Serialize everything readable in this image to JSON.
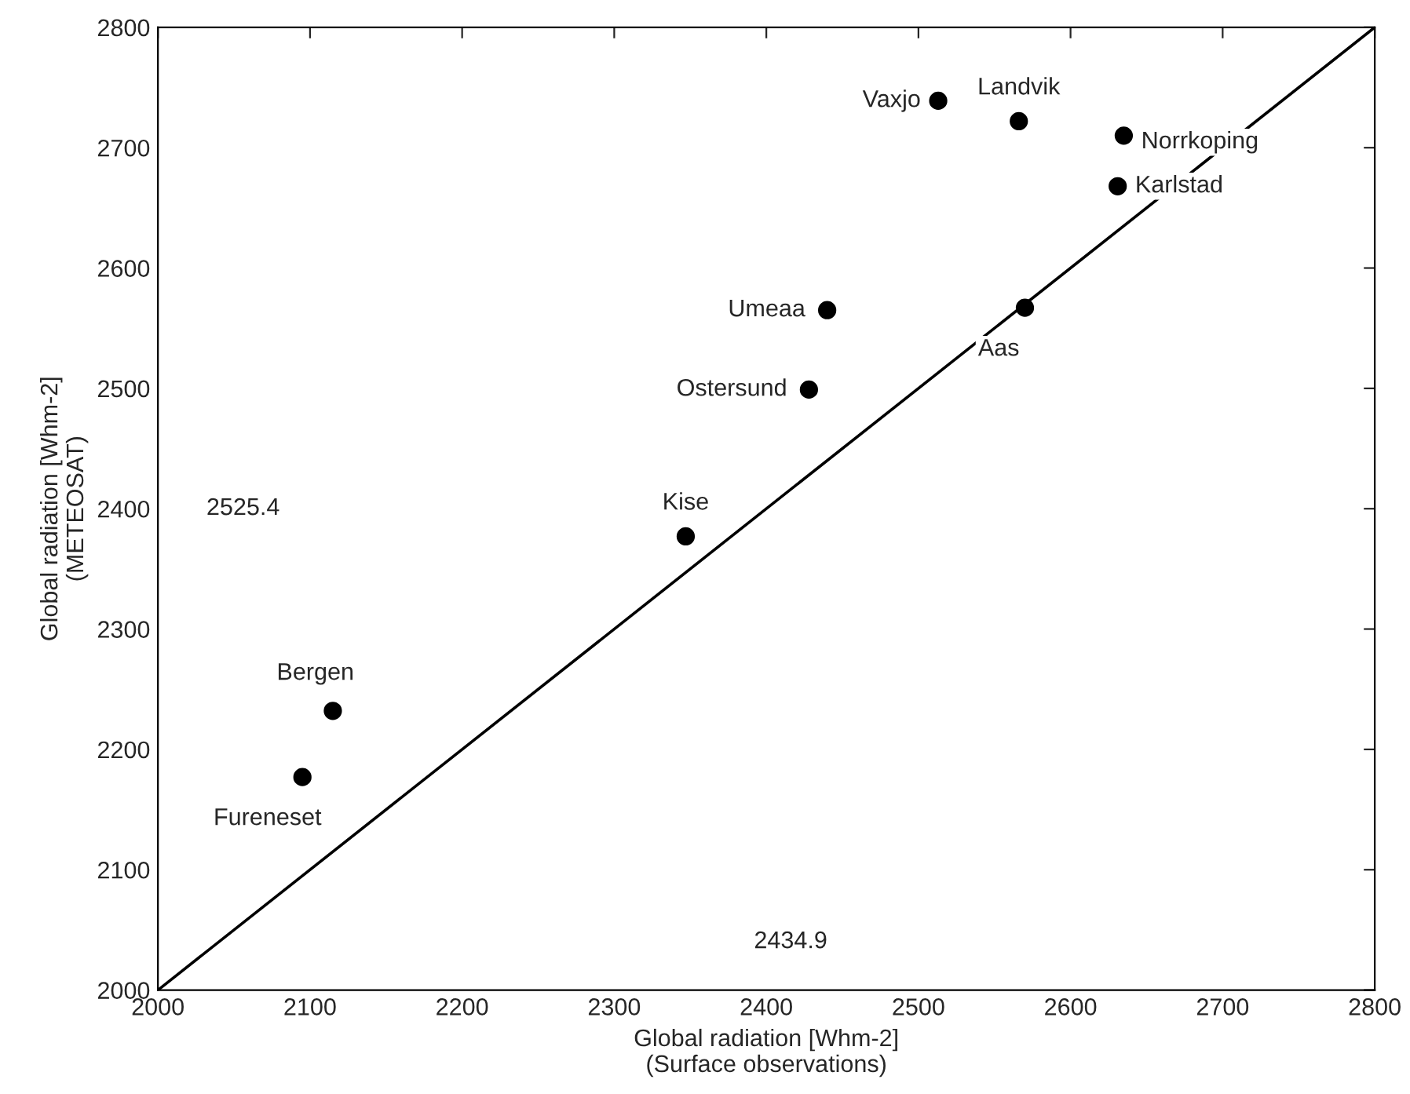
{
  "chart_data": {
    "type": "scatter",
    "xlabel": "Global radiation [Whm-2]\n(Surface observations)",
    "ylabel": "Global radiation [Whm-2]\n(METEOSAT)",
    "xlim": [
      2000,
      2800
    ],
    "ylim": [
      2000,
      2800
    ],
    "xticks": [
      2000,
      2100,
      2200,
      2300,
      2400,
      2500,
      2600,
      2700,
      2800
    ],
    "yticks": [
      2000,
      2100,
      2200,
      2300,
      2400,
      2500,
      2600,
      2700,
      2800
    ],
    "grid": false,
    "legend": false,
    "marker": "circle",
    "series": [
      {
        "color": "#000000",
        "x": [
          2513,
          2566,
          2635,
          2631,
          2440,
          2570,
          2428,
          2347,
          2115,
          2095
        ],
        "values": [
          2739,
          2722,
          2710,
          2668,
          2565,
          2567,
          2499,
          2377,
          2232,
          2177
        ],
        "value_labels": [
          "Vaxjo",
          "Landvik",
          "Norrkoping",
          "Karlstad",
          "Umeaa",
          "Aas",
          "Ostersund",
          "Kise",
          "Bergen",
          "Fureneset"
        ]
      },
      {
        "type": "line",
        "marker": "none",
        "color": "#000000",
        "x": [
          2000,
          2800
        ],
        "values": [
          2000,
          2800
        ]
      }
    ],
    "annotations": [
      "2525.4",
      "2434.9"
    ]
  }
}
